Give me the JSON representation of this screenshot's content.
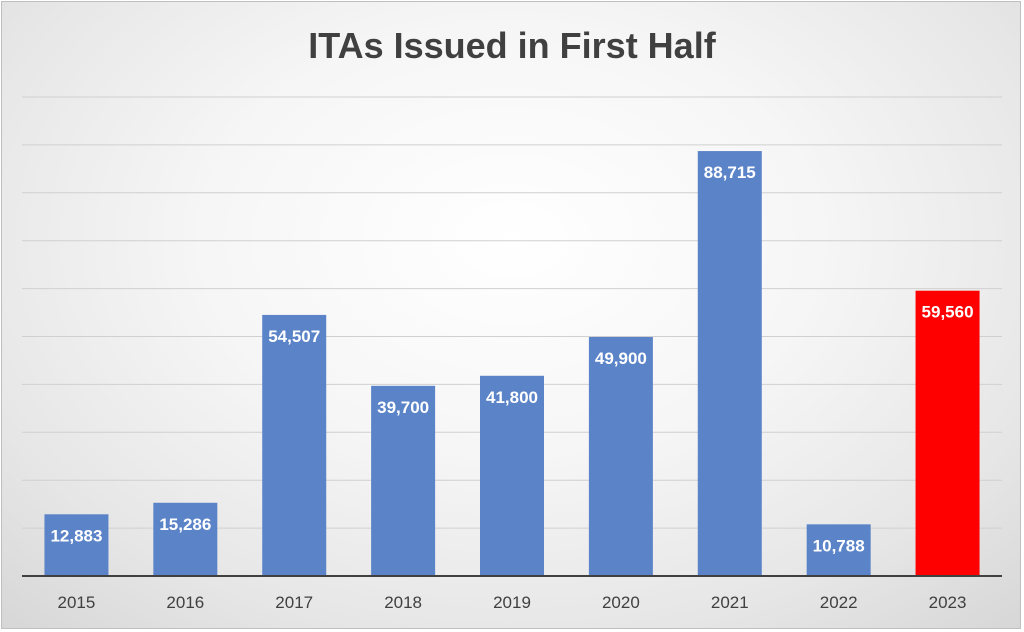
{
  "chart_data": {
    "type": "bar",
    "title": "ITAs Issued in First Half",
    "xlabel": "",
    "ylabel": "",
    "categories": [
      "2015",
      "2016",
      "2017",
      "2018",
      "2019",
      "2020",
      "2021",
      "2022",
      "2023"
    ],
    "values": [
      12883,
      15286,
      54507,
      39700,
      41800,
      49900,
      88715,
      10788,
      59560
    ],
    "data_labels": [
      "12,883",
      "15,286",
      "54,507",
      "39,700",
      "41,800",
      "49,900",
      "88,715",
      "10,788",
      "59,560"
    ],
    "ylim": [
      0,
      100000
    ],
    "gridline_step": 10000,
    "grid": true,
    "legend": "none",
    "colors": {
      "bar": "#5b83c8",
      "highlight": "#ff0000",
      "grid": "#d0d0d0",
      "axis": "#404040"
    },
    "highlight_index": 8
  }
}
